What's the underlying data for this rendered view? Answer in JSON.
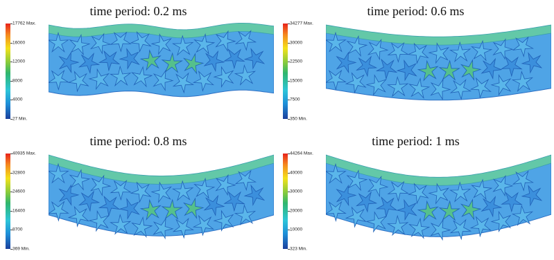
{
  "panels": [
    {
      "title": "time period: 0.2 ms",
      "legend": {
        "max": "17762 Max.",
        "ticks": [
          "16000",
          "12000",
          "8000",
          "4000"
        ],
        "min": "27 Min."
      },
      "bend": 0.08
    },
    {
      "title": "time period: 0.6 ms",
      "legend": {
        "max": "34277 Max.",
        "ticks": [
          "30000",
          "22500",
          "15000",
          "7500"
        ],
        "min": "350 Min."
      },
      "bend": 0.45
    },
    {
      "title": "time period: 0.8 ms",
      "legend": {
        "max": "40935 Max.",
        "ticks": [
          "32800",
          "24600",
          "16400",
          "8700"
        ],
        "min": "369 Min."
      },
      "bend": 0.8
    },
    {
      "title": "time period: 1 ms",
      "legend": {
        "max": "44264 Max.",
        "ticks": [
          "40000",
          "30000",
          "20000",
          "10000"
        ],
        "min": "323 Min."
      },
      "bend": 0.85
    }
  ]
}
